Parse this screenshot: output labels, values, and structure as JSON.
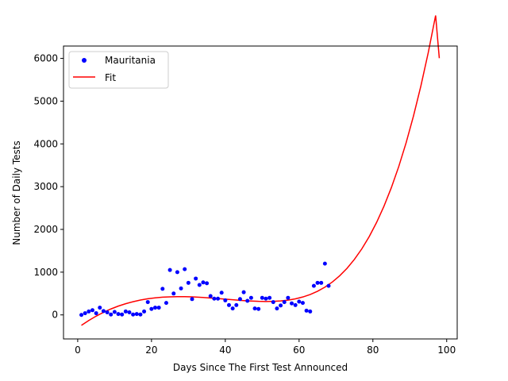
{
  "chart_data": {
    "type": "scatter",
    "xlabel": "Days Since The First Test Announced",
    "ylabel": "Number of Daily Tests",
    "xlim": [
      -3.85,
      102.85
    ],
    "ylim": [
      -562,
      6289
    ],
    "xticks": [
      0,
      20,
      40,
      60,
      80,
      100
    ],
    "yticks": [
      0,
      1000,
      2000,
      3000,
      4000,
      5000,
      6000
    ],
    "grid": false,
    "legend_position": "upper left",
    "series": [
      {
        "name": "Mauritania",
        "kind": "points",
        "color": "#0000ff",
        "x": [
          1,
          2,
          3,
          4,
          5,
          6,
          7,
          8,
          9,
          10,
          11,
          12,
          13,
          14,
          15,
          16,
          17,
          18,
          19,
          20,
          21,
          22,
          23,
          24,
          25,
          26,
          27,
          28,
          29,
          30,
          31,
          32,
          33,
          34,
          35,
          36,
          37,
          38,
          39,
          40,
          41,
          42,
          43,
          44,
          45,
          46,
          47,
          48,
          49,
          50,
          51,
          52,
          53,
          54,
          55,
          56,
          57,
          58,
          59,
          60,
          61,
          62,
          63,
          64,
          65,
          66,
          67,
          68
        ],
        "y": [
          0,
          40,
          80,
          110,
          40,
          170,
          90,
          60,
          10,
          70,
          20,
          10,
          80,
          60,
          10,
          20,
          10,
          80,
          300,
          140,
          170,
          170,
          610,
          280,
          1050,
          500,
          1000,
          620,
          1070,
          750,
          370,
          850,
          700,
          760,
          740,
          440,
          380,
          380,
          520,
          340,
          230,
          150,
          230,
          370,
          530,
          330,
          400,
          150,
          140,
          400,
          380,
          400,
          300,
          150,
          220,
          300,
          400,
          270,
          230,
          310,
          280,
          100,
          80,
          680,
          750,
          750,
          1200,
          680
        ]
      },
      {
        "name": "Fit",
        "kind": "line",
        "color": "#ff0000",
        "x": [
          1,
          3,
          5,
          7,
          9,
          11,
          13,
          15,
          17,
          19,
          21,
          23,
          25,
          27,
          29,
          31,
          33,
          35,
          37,
          39,
          41,
          43,
          45,
          47,
          49,
          51,
          53,
          55,
          57,
          59,
          61,
          63,
          65,
          67,
          69,
          71,
          73,
          75,
          77,
          79,
          81,
          83,
          85,
          87,
          89,
          91,
          93,
          95,
          97,
          98
        ],
        "y": [
          -245,
          -130,
          -29,
          61,
          139,
          206,
          262,
          309,
          347,
          377,
          399,
          414,
          423,
          427,
          426,
          421,
          413,
          402,
          389,
          375,
          361,
          347,
          334,
          324,
          317,
          314,
          317,
          327,
          346,
          376,
          419,
          477,
          553,
          649,
          769,
          915,
          1091,
          1300,
          1545,
          1831,
          2162,
          2542,
          2976,
          3468,
          4025,
          4651,
          5352,
          6134,
          7003,
          6005
        ]
      }
    ]
  }
}
